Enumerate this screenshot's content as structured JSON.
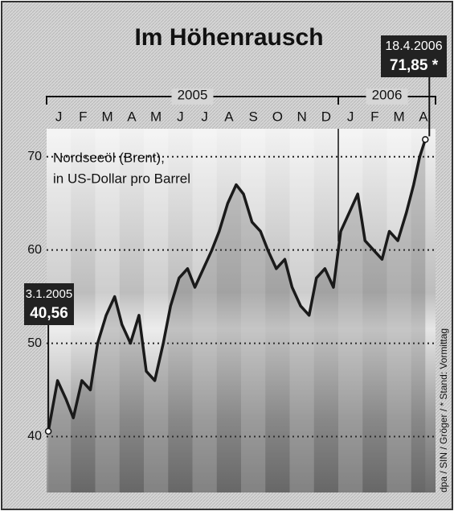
{
  "chart_data": {
    "type": "line",
    "title": "Im Höhenrausch",
    "years": [
      "2005",
      "2006"
    ],
    "note": [
      "Nordseeöl (Brent),",
      "in US-Dollar pro Barrel"
    ],
    "start_label": [
      "3.1.2005",
      "40,56"
    ],
    "end_label": [
      "18.4.2006",
      "71,85 *"
    ],
    "source": "dpa / SIN / Gröger / * Stand: Vormittag",
    "xlim": [
      0,
      16
    ],
    "xticks": [
      {
        "value": 0.5,
        "label": "J"
      },
      {
        "value": 1.5,
        "label": "F"
      },
      {
        "value": 2.5,
        "label": "M"
      },
      {
        "value": 3.5,
        "label": "A"
      },
      {
        "value": 4.5,
        "label": "M"
      },
      {
        "value": 5.5,
        "label": "J"
      },
      {
        "value": 6.5,
        "label": "J"
      },
      {
        "value": 7.5,
        "label": "A"
      },
      {
        "value": 8.5,
        "label": "S"
      },
      {
        "value": 9.5,
        "label": "O"
      },
      {
        "value": 10.5,
        "label": "N"
      },
      {
        "value": 11.5,
        "label": "D"
      },
      {
        "value": 12.5,
        "label": "J"
      },
      {
        "value": 13.5,
        "label": "F"
      },
      {
        "value": 14.5,
        "label": "M"
      },
      {
        "value": 15.5,
        "label": "A"
      }
    ],
    "ylim": [
      34,
      73
    ],
    "yticks": [
      40,
      50,
      60,
      70
    ],
    "grid": true,
    "color": "#1a1a1a",
    "x": [
      0.07,
      0.45,
      0.8,
      1.1,
      1.45,
      1.8,
      2.1,
      2.45,
      2.8,
      3.1,
      3.45,
      3.8,
      4.1,
      4.45,
      4.8,
      5.1,
      5.45,
      5.8,
      6.1,
      6.45,
      6.8,
      7.1,
      7.45,
      7.8,
      8.1,
      8.45,
      8.8,
      9.1,
      9.45,
      9.8,
      10.1,
      10.45,
      10.8,
      11.1,
      11.45,
      11.8,
      12.1,
      12.45,
      12.8,
      13.1,
      13.45,
      13.8,
      14.1,
      14.45,
      14.8,
      15.1,
      15.35,
      15.58
    ],
    "values": [
      40.56,
      46,
      44,
      42,
      46,
      45,
      50,
      53,
      55,
      52,
      50,
      53,
      47,
      46,
      50,
      54,
      57,
      58,
      56,
      58,
      60,
      62,
      65,
      67,
      66,
      63,
      62,
      60,
      58,
      59,
      56,
      54,
      53,
      57,
      58,
      56,
      62,
      64,
      66,
      61,
      60,
      59,
      62,
      61,
      64,
      67,
      70,
      71.85
    ]
  }
}
